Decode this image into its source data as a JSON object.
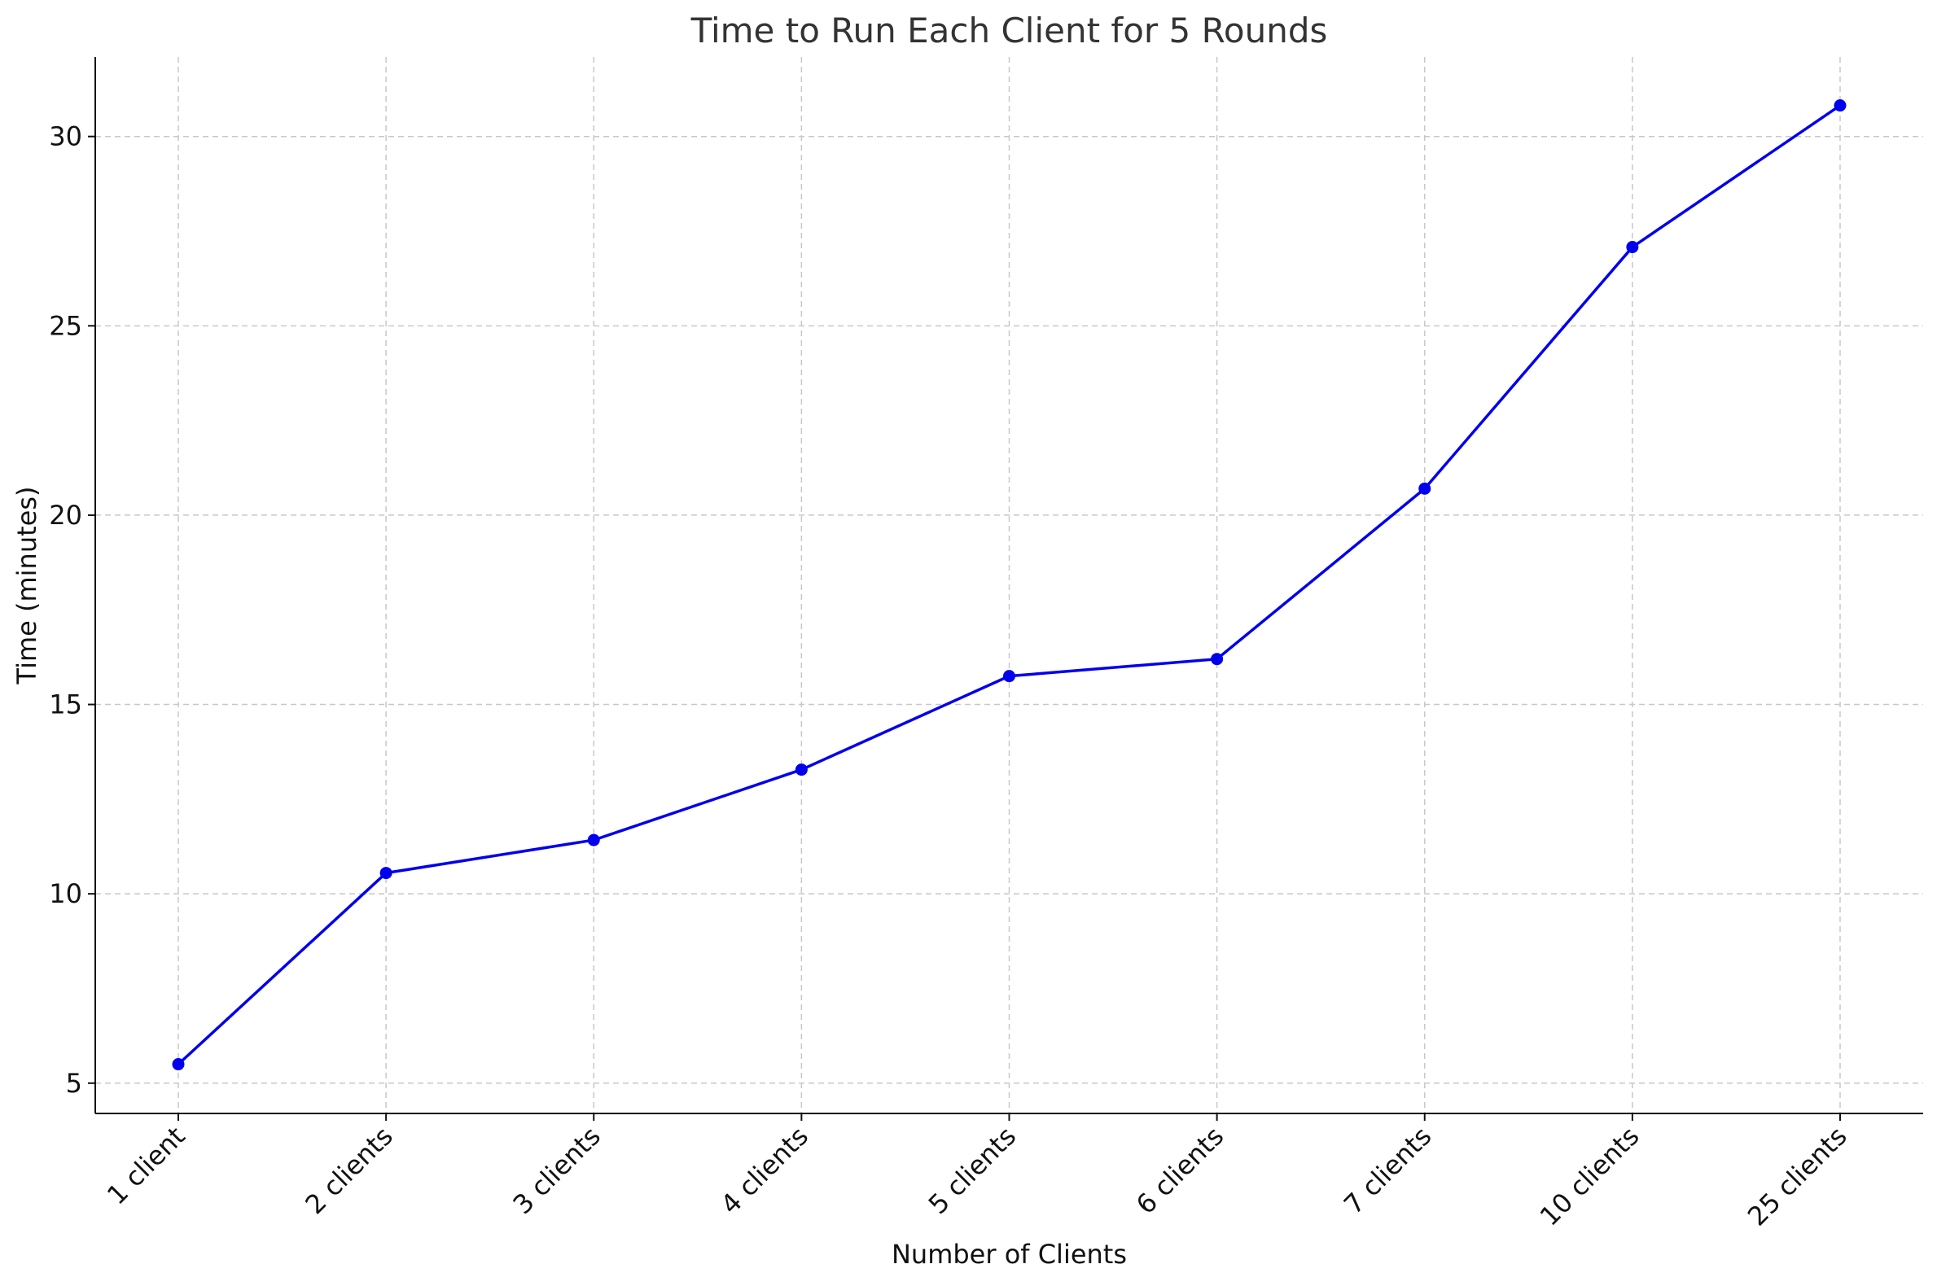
{
  "chart_data": {
    "type": "line",
    "title": "Time to Run Each Client for 5 Rounds",
    "xlabel": "Number of Clients",
    "ylabel": "Time (minutes)",
    "categories": [
      "1 client",
      "2 clients",
      "3 clients",
      "4 clients",
      "5 clients",
      "6 clients",
      "7 clients",
      "10 clients",
      "25 clients"
    ],
    "series": [
      {
        "values": [
          5.5,
          10.55,
          11.42,
          13.28,
          15.75,
          16.2,
          20.7,
          27.08,
          30.82
        ],
        "color": "#0000ee",
        "marker": "circle"
      }
    ],
    "ylim": [
      4.2,
      32.1
    ],
    "yticks": [
      5,
      10,
      15,
      20,
      25,
      30
    ],
    "grid": true,
    "legend": "none"
  }
}
